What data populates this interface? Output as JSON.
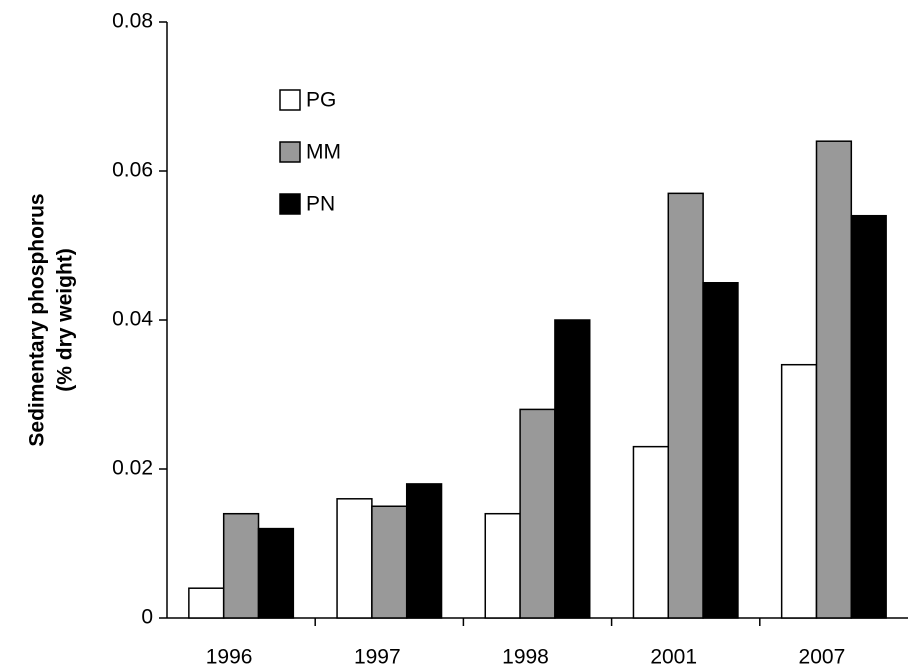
{
  "chart_data": {
    "type": "bar",
    "y_label": [
      "Sedimentary phosphorus",
      "(% dry weight)"
    ],
    "categories": [
      "1996",
      "1997",
      "1998",
      "2001",
      "2007"
    ],
    "series": [
      {
        "name": "PG",
        "color": "#ffffff",
        "values": [
          0.004,
          0.016,
          0.014,
          0.023,
          0.034
        ]
      },
      {
        "name": "MM",
        "color": "#999999",
        "values": [
          0.014,
          0.015,
          0.028,
          0.057,
          0.064
        ]
      },
      {
        "name": "PN",
        "color": "#000000",
        "values": [
          0.012,
          0.018,
          0.04,
          0.045,
          0.054
        ]
      }
    ],
    "ylim": [
      0,
      0.08
    ],
    "yticks": [
      0,
      0.02,
      0.04,
      0.06,
      0.08
    ],
    "grid": false,
    "legend": "upper-left"
  }
}
